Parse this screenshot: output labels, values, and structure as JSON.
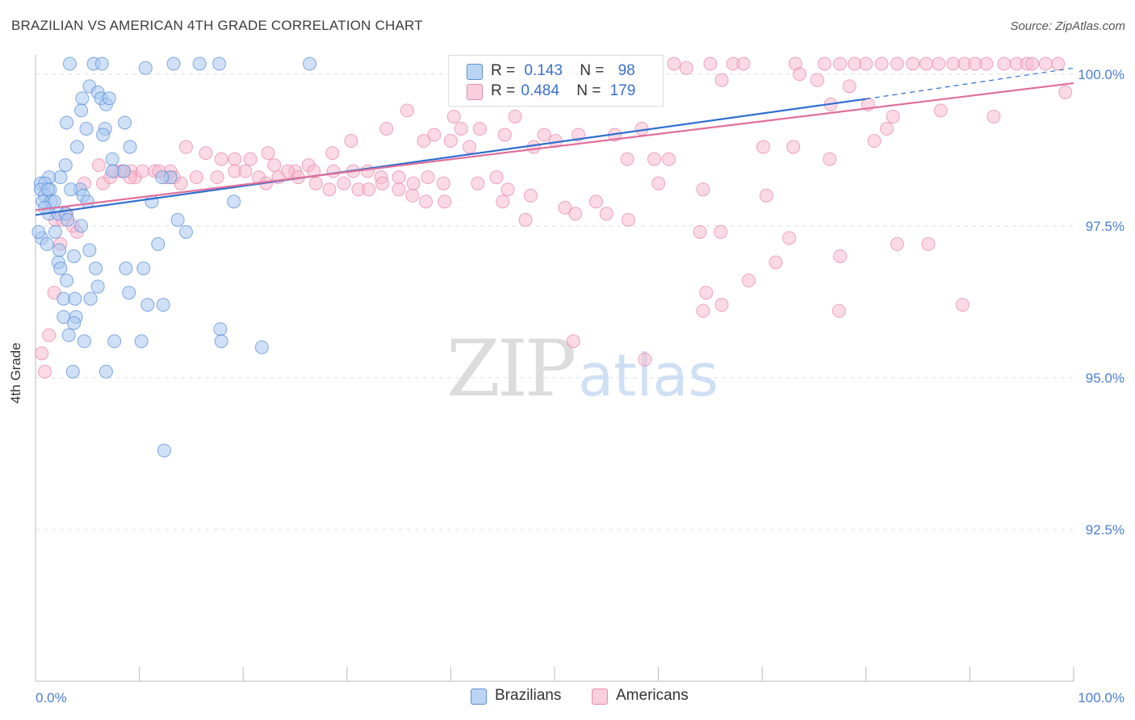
{
  "header": {
    "title": "BRAZILIAN VS AMERICAN 4TH GRADE CORRELATION CHART",
    "source": "Source: ZipAtlas.com"
  },
  "watermark": {
    "zip": "ZIP",
    "atlas": "atlas"
  },
  "legend": {
    "rows": [
      {
        "r_label": "R =",
        "r_value": "0.143",
        "n_label": "N =",
        "n_value": "98"
      },
      {
        "r_label": "R =",
        "r_value": "0.484",
        "n_label": "N =",
        "n_value": "179"
      }
    ],
    "bottom": [
      "Brazilians",
      "Americans"
    ]
  },
  "colors": {
    "blue_fill": "#a9c8f0",
    "blue_stroke": "#5b8fd9",
    "blue_line": "#2f6fd0",
    "pink_fill": "#f7bcd0",
    "pink_stroke": "#e889aa",
    "pink_line": "#e0709a",
    "tick_label": "#4a7fd4",
    "grid": "#dddddd"
  },
  "chart_data": {
    "type": "scatter",
    "title": "BRAZILIAN VS AMERICAN 4TH GRADE CORRELATION CHART",
    "xlabel": "",
    "ylabel": "4th Grade",
    "xlim": [
      0,
      100
    ],
    "ylim": [
      90.0,
      100.0
    ],
    "x_tick_labels": [
      "0.0%",
      "100.0%"
    ],
    "y_ticks": [
      92.5,
      95.0,
      97.5,
      100.0
    ],
    "y_tick_labels": [
      "92.5%",
      "95.0%",
      "97.5%",
      "100.0%"
    ],
    "grid": true,
    "legend_position": "top-center",
    "series": [
      {
        "name": "Brazilians",
        "R": 0.143,
        "N": 98,
        "trend": {
          "x": [
            0,
            80,
            100
          ],
          "y": [
            97.68,
            99.59,
            100.1
          ]
        },
        "points": [
          [
            3.3,
            100.2
          ],
          [
            5.6,
            100.2
          ],
          [
            6.4,
            100.2
          ],
          [
            10.6,
            100.1
          ],
          [
            13.3,
            100.2
          ],
          [
            15.8,
            100.2
          ],
          [
            17.7,
            100.2
          ],
          [
            26.4,
            100.2
          ],
          [
            5.2,
            99.8
          ],
          [
            6.0,
            99.7
          ],
          [
            4.5,
            99.6
          ],
          [
            6.3,
            99.6
          ],
          [
            6.8,
            99.5
          ],
          [
            7.1,
            99.6
          ],
          [
            4.4,
            99.4
          ],
          [
            3.0,
            99.2
          ],
          [
            8.6,
            99.2
          ],
          [
            4.9,
            99.1
          ],
          [
            6.7,
            99.1
          ],
          [
            6.5,
            99.0
          ],
          [
            9.1,
            98.8
          ],
          [
            4.0,
            98.8
          ],
          [
            7.4,
            98.6
          ],
          [
            2.9,
            98.5
          ],
          [
            8.5,
            98.4
          ],
          [
            2.4,
            98.3
          ],
          [
            1.3,
            98.3
          ],
          [
            7.4,
            98.4
          ],
          [
            13.0,
            98.3
          ],
          [
            12.2,
            98.3
          ],
          [
            0.5,
            98.2
          ],
          [
            0.9,
            98.2
          ],
          [
            0.5,
            98.1
          ],
          [
            1.4,
            98.1
          ],
          [
            0.9,
            98.0
          ],
          [
            1.2,
            98.1
          ],
          [
            4.3,
            98.1
          ],
          [
            4.6,
            98.0
          ],
          [
            3.4,
            98.1
          ],
          [
            0.7,
            97.9
          ],
          [
            1.5,
            97.9
          ],
          [
            1.8,
            97.9
          ],
          [
            5.0,
            97.9
          ],
          [
            11.2,
            97.9
          ],
          [
            19.1,
            97.9
          ],
          [
            1.3,
            97.7
          ],
          [
            0.9,
            97.8
          ],
          [
            2.2,
            97.7
          ],
          [
            2.9,
            97.7
          ],
          [
            3.1,
            97.6
          ],
          [
            4.4,
            97.5
          ],
          [
            13.7,
            97.6
          ],
          [
            1.9,
            97.4
          ],
          [
            0.6,
            97.3
          ],
          [
            1.1,
            97.2
          ],
          [
            11.8,
            97.2
          ],
          [
            14.5,
            97.4
          ],
          [
            2.3,
            97.1
          ],
          [
            3.7,
            97.0
          ],
          [
            5.2,
            97.1
          ],
          [
            2.2,
            96.9
          ],
          [
            2.4,
            96.8
          ],
          [
            5.8,
            96.8
          ],
          [
            8.7,
            96.8
          ],
          [
            10.4,
            96.8
          ],
          [
            3.0,
            96.6
          ],
          [
            6.0,
            96.5
          ],
          [
            9.0,
            96.4
          ],
          [
            2.7,
            96.3
          ],
          [
            3.8,
            96.3
          ],
          [
            5.3,
            96.3
          ],
          [
            10.8,
            96.2
          ],
          [
            12.3,
            96.2
          ],
          [
            2.7,
            96.0
          ],
          [
            3.9,
            96.0
          ],
          [
            3.7,
            95.9
          ],
          [
            17.8,
            95.8
          ],
          [
            3.2,
            95.7
          ],
          [
            17.9,
            95.6
          ],
          [
            4.7,
            95.6
          ],
          [
            7.6,
            95.6
          ],
          [
            10.2,
            95.6
          ],
          [
            21.8,
            95.5
          ],
          [
            3.6,
            95.1
          ],
          [
            6.8,
            95.1
          ],
          [
            12.4,
            93.8
          ],
          [
            0.3,
            97.4
          ]
        ]
      },
      {
        "name": "Americans",
        "R": 0.484,
        "N": 179,
        "trend": {
          "x": [
            0,
            100
          ],
          "y": [
            97.76,
            99.85
          ]
        },
        "points": [
          [
            61.5,
            100.2
          ],
          [
            65.0,
            100.2
          ],
          [
            67.2,
            100.2
          ],
          [
            68.2,
            100.2
          ],
          [
            73.2,
            100.2
          ],
          [
            76.0,
            100.2
          ],
          [
            77.5,
            100.2
          ],
          [
            78.9,
            100.2
          ],
          [
            80.0,
            100.2
          ],
          [
            81.5,
            100.2
          ],
          [
            83.0,
            100.2
          ],
          [
            84.5,
            100.2
          ],
          [
            85.8,
            100.2
          ],
          [
            87.0,
            100.2
          ],
          [
            88.4,
            100.2
          ],
          [
            89.5,
            100.2
          ],
          [
            90.5,
            100.2
          ],
          [
            91.6,
            100.2
          ],
          [
            93.3,
            100.2
          ],
          [
            94.5,
            100.2
          ],
          [
            95.5,
            100.2
          ],
          [
            96.0,
            100.2
          ],
          [
            97.3,
            100.2
          ],
          [
            98.5,
            100.2
          ],
          [
            49.0,
            99.0
          ],
          [
            48.7,
            99.7
          ],
          [
            62.7,
            100.1
          ],
          [
            73.6,
            100.0
          ],
          [
            75.3,
            99.9
          ],
          [
            66.1,
            99.9
          ],
          [
            76.6,
            99.5
          ],
          [
            80.2,
            99.5
          ],
          [
            82.6,
            99.3
          ],
          [
            99.2,
            99.7
          ],
          [
            35.8,
            99.4
          ],
          [
            33.8,
            99.1
          ],
          [
            40.3,
            99.3
          ],
          [
            46.2,
            99.3
          ],
          [
            38.4,
            99.0
          ],
          [
            41.0,
            99.1
          ],
          [
            42.8,
            99.1
          ],
          [
            45.2,
            99.0
          ],
          [
            55.8,
            99.0
          ],
          [
            58.4,
            99.1
          ],
          [
            52.3,
            99.0
          ],
          [
            50.1,
            98.9
          ],
          [
            48.0,
            98.8
          ],
          [
            41.8,
            98.8
          ],
          [
            40.0,
            98.9
          ],
          [
            37.4,
            98.9
          ],
          [
            30.4,
            98.9
          ],
          [
            28.6,
            98.7
          ],
          [
            22.4,
            98.7
          ],
          [
            14.5,
            98.8
          ],
          [
            16.4,
            98.7
          ],
          [
            17.9,
            98.6
          ],
          [
            19.2,
            98.6
          ],
          [
            20.7,
            98.6
          ],
          [
            23.0,
            98.5
          ],
          [
            25.0,
            98.4
          ],
          [
            26.3,
            98.5
          ],
          [
            26.8,
            98.4
          ],
          [
            28.7,
            98.4
          ],
          [
            30.6,
            98.4
          ],
          [
            32.0,
            98.4
          ],
          [
            33.3,
            98.3
          ],
          [
            35.0,
            98.3
          ],
          [
            36.4,
            98.2
          ],
          [
            37.8,
            98.3
          ],
          [
            39.3,
            98.2
          ],
          [
            42.6,
            98.2
          ],
          [
            44.4,
            98.3
          ],
          [
            45.5,
            98.1
          ],
          [
            47.7,
            98.0
          ],
          [
            8.2,
            98.4
          ],
          [
            9.2,
            98.4
          ],
          [
            9.6,
            98.3
          ],
          [
            10.3,
            98.4
          ],
          [
            11.5,
            98.4
          ],
          [
            12.6,
            98.3
          ],
          [
            13.0,
            98.4
          ],
          [
            14.0,
            98.2
          ],
          [
            15.5,
            98.3
          ],
          [
            17.5,
            98.3
          ],
          [
            19.2,
            98.4
          ],
          [
            20.2,
            98.4
          ],
          [
            21.5,
            98.3
          ],
          [
            22.2,
            98.2
          ],
          [
            23.4,
            98.3
          ],
          [
            24.3,
            98.4
          ],
          [
            25.3,
            98.3
          ],
          [
            27.0,
            98.2
          ],
          [
            28.3,
            98.1
          ],
          [
            29.7,
            98.2
          ],
          [
            31.1,
            98.1
          ],
          [
            32.1,
            98.1
          ],
          [
            33.4,
            98.2
          ],
          [
            35.0,
            98.1
          ],
          [
            36.3,
            98.0
          ],
          [
            37.6,
            97.9
          ],
          [
            39.4,
            97.9
          ],
          [
            4.7,
            98.2
          ],
          [
            6.5,
            98.2
          ],
          [
            7.2,
            98.3
          ],
          [
            8.5,
            98.4
          ],
          [
            9.1,
            98.3
          ],
          [
            6.1,
            98.5
          ],
          [
            7.6,
            98.4
          ],
          [
            11.9,
            98.4
          ],
          [
            13.3,
            98.3
          ],
          [
            61.0,
            98.6
          ],
          [
            57.0,
            98.6
          ],
          [
            59.6,
            98.6
          ],
          [
            70.1,
            98.8
          ],
          [
            73.0,
            98.8
          ],
          [
            76.5,
            98.6
          ],
          [
            80.8,
            98.9
          ],
          [
            92.3,
            99.3
          ],
          [
            87.2,
            99.4
          ],
          [
            78.4,
            99.8
          ],
          [
            82.0,
            99.1
          ],
          [
            60.0,
            98.2
          ],
          [
            64.3,
            98.1
          ],
          [
            70.4,
            98.0
          ],
          [
            45.0,
            97.9
          ],
          [
            54.0,
            97.9
          ],
          [
            51.0,
            97.8
          ],
          [
            52.0,
            97.7
          ],
          [
            55.0,
            97.7
          ],
          [
            57.1,
            97.6
          ],
          [
            47.2,
            97.6
          ],
          [
            3.0,
            97.7
          ],
          [
            3.6,
            97.5
          ],
          [
            1.9,
            97.6
          ],
          [
            4.0,
            97.4
          ],
          [
            64.0,
            97.4
          ],
          [
            66.0,
            97.4
          ],
          [
            72.6,
            97.3
          ],
          [
            83.0,
            97.2
          ],
          [
            2.4,
            97.2
          ],
          [
            86.0,
            97.2
          ],
          [
            77.5,
            97.0
          ],
          [
            71.3,
            96.9
          ],
          [
            68.7,
            96.6
          ],
          [
            89.3,
            96.2
          ],
          [
            64.6,
            96.4
          ],
          [
            66.1,
            96.2
          ],
          [
            64.3,
            96.1
          ],
          [
            77.4,
            96.1
          ],
          [
            51.8,
            95.6
          ],
          [
            58.7,
            95.3
          ],
          [
            1.8,
            96.4
          ],
          [
            1.3,
            95.7
          ],
          [
            0.6,
            95.4
          ],
          [
            0.9,
            95.1
          ],
          [
            2.6,
            97.6
          ]
        ]
      }
    ]
  }
}
